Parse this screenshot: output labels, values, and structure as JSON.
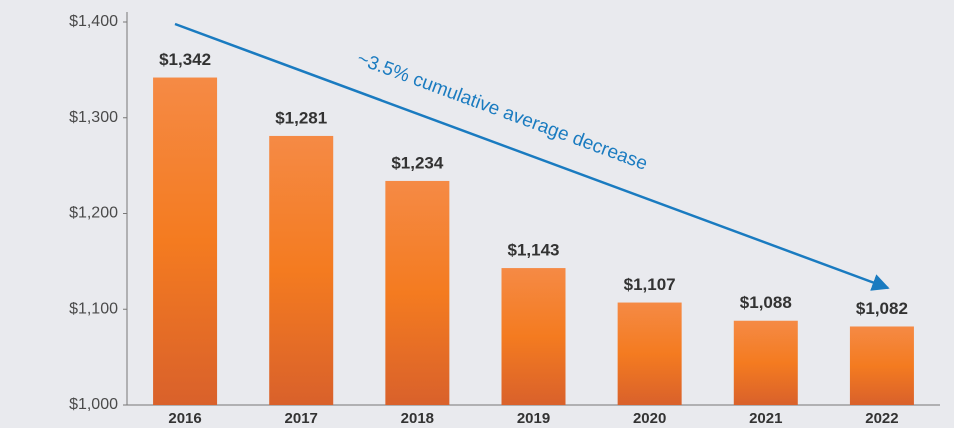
{
  "chart_data": {
    "type": "bar",
    "categories": [
      "2016",
      "2017",
      "2018",
      "2019",
      "2020",
      "2021",
      "2022"
    ],
    "values": [
      1342,
      1281,
      1234,
      1143,
      1107,
      1088,
      1082
    ],
    "value_labels": [
      "$1,342",
      "$1,281",
      "$1,234",
      "$1,143",
      "$1,107",
      "$1,088",
      "$1,082"
    ],
    "color": "#f47b20",
    "ylim": [
      1000,
      1400
    ],
    "yticks": [
      {
        "value": 1000,
        "label": "$1,000"
      },
      {
        "value": 1100,
        "label": "$1,100"
      },
      {
        "value": 1200,
        "label": "$1,200"
      },
      {
        "value": 1300,
        "label": "$1,300"
      },
      {
        "value": 1400,
        "label": "$1,400"
      }
    ],
    "grid": false,
    "annotation": "~3.5% cumulative average decrease"
  }
}
